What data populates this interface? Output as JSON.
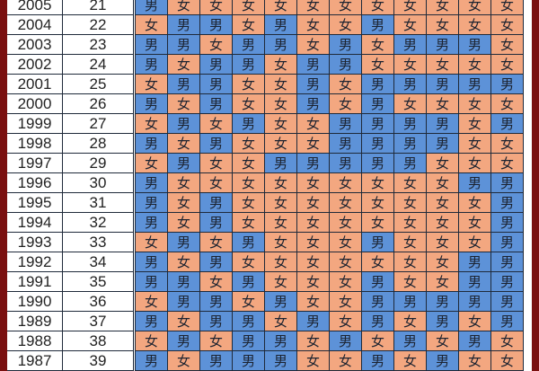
{
  "labels": {
    "M": "男",
    "F": "女"
  },
  "colors": {
    "boy": "#5d92d8",
    "girl": "#f3a780",
    "frame": "#7a1010"
  },
  "rows": [
    {
      "year": "2005",
      "age": "21",
      "cells": "MFFFFFFFFFFF"
    },
    {
      "year": "2004",
      "age": "22",
      "cells": "FMMFMFFMFFFF"
    },
    {
      "year": "2003",
      "age": "23",
      "cells": "MMFMMFMFMMMF"
    },
    {
      "year": "2002",
      "age": "24",
      "cells": "MFMMFMMFFFFF"
    },
    {
      "year": "2001",
      "age": "25",
      "cells": "FMMFFMFMMMMM"
    },
    {
      "year": "2000",
      "age": "26",
      "cells": "MFMFFMFMFFFF"
    },
    {
      "year": "1999",
      "age": "27",
      "cells": "FMFMFFMMMMFM"
    },
    {
      "year": "1998",
      "age": "28",
      "cells": "MFMFFFMMMMFF"
    },
    {
      "year": "1997",
      "age": "29",
      "cells": "FMFFMMMMMFFF"
    },
    {
      "year": "1996",
      "age": "30",
      "cells": "MFFFFFFFFFMM"
    },
    {
      "year": "1995",
      "age": "31",
      "cells": "MFMFFFFFFFFM"
    },
    {
      "year": "1994",
      "age": "32",
      "cells": "MFMFFFFFFFFM"
    },
    {
      "year": "1993",
      "age": "33",
      "cells": "FMFMFFFMFFFM"
    },
    {
      "year": "1992",
      "age": "34",
      "cells": "MFMFFFFFFFMM"
    },
    {
      "year": "1991",
      "age": "35",
      "cells": "MMFMFFFMFFMM"
    },
    {
      "year": "1990",
      "age": "36",
      "cells": "FMMFMFFMMMMM"
    },
    {
      "year": "1989",
      "age": "37",
      "cells": "MFMMFMFMFMFM"
    },
    {
      "year": "1988",
      "age": "38",
      "cells": "FMFMMFMFMFMF"
    },
    {
      "year": "1987",
      "age": "39",
      "cells": "MFMMMFFMFMFF"
    }
  ]
}
